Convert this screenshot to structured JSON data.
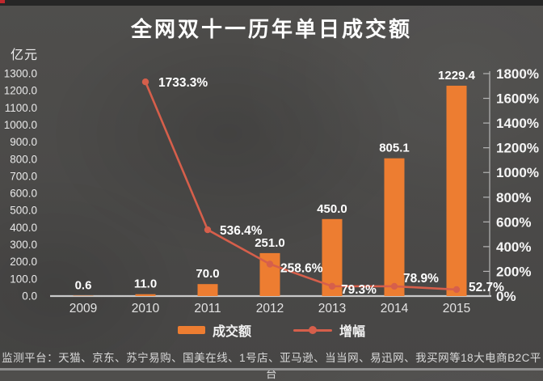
{
  "page": {
    "title": "全网双十一历年单日成交额",
    "footer": "监测平台：天猫、京东、苏宁易购、国美在线、1号店、亚马逊、当当网、易迅网、我买网等18大电商B2C平台"
  },
  "colors": {
    "bar": "#ed7d31",
    "line": "#d65f4b",
    "axis_line": "#c9c9c9",
    "right_axis_line": "#b5b5b5",
    "tick_text": "#e8e8e8",
    "value_text": "#ffffff",
    "background": "#4c4b49",
    "progress_red": "#c1272d"
  },
  "legend": {
    "items": [
      {
        "label": "成交额",
        "swatch": "bar-swatch",
        "color": "#ed7d31"
      },
      {
        "label": "增幅",
        "swatch": "line-swatch",
        "color": "#d65f4b"
      }
    ]
  },
  "chart_data": {
    "type": "bar+line combo",
    "title": "全网双十一历年单日成交额",
    "categories": [
      "2009",
      "2010",
      "2011",
      "2012",
      "2013",
      "2014",
      "2015"
    ],
    "series": [
      {
        "name": "成交额",
        "type": "bar",
        "axis": "left",
        "values": [
          0.6,
          11.0,
          70.0,
          251.0,
          450.0,
          805.1,
          1229.4
        ],
        "labels": [
          "0.6",
          "11.0",
          "70.0",
          "251.0",
          "450.0",
          "805.1",
          "1229.4"
        ],
        "color": "#ed7d31"
      },
      {
        "name": "增幅",
        "type": "line",
        "axis": "right",
        "values": [
          null,
          1733.3,
          536.4,
          258.6,
          79.3,
          78.9,
          52.7
        ],
        "labels": [
          "",
          "1733.3%",
          "536.4%",
          "258.6%",
          "79.3%",
          "78.9%",
          "52.7%"
        ],
        "color": "#d65f4b"
      }
    ],
    "left_axis": {
      "unit_label": "亿元",
      "min": 0,
      "max": 1300,
      "step": 100,
      "ticks": [
        "1300.0",
        "1200.0",
        "1100.0",
        "1000.0",
        "900.0",
        "800.0",
        "700.0",
        "600.0",
        "500.0",
        "400.0",
        "300.0",
        "200.0",
        "100.0",
        "0.0"
      ]
    },
    "right_axis": {
      "min": 0,
      "max": 1800,
      "step": 200,
      "suffix": "%",
      "ticks": [
        "1800%",
        "1600%",
        "1400%",
        "1200%",
        "1000%",
        "800%",
        "600%",
        "400%",
        "200%",
        "0%"
      ]
    },
    "grid": false,
    "legend_position": "bottom"
  }
}
